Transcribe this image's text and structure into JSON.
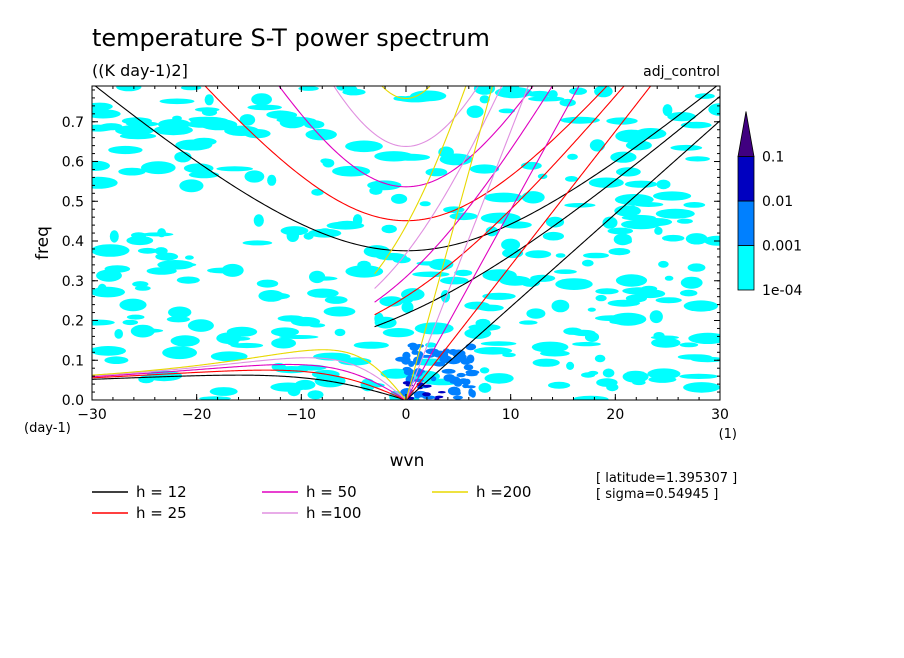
{
  "header": {
    "title": "temperature S-T power spectrum",
    "units": "((K day-1)2]",
    "run_label": "adj_control"
  },
  "chart_data": {
    "type": "heatmap",
    "xlabel": "wvn",
    "xunit": "(1)",
    "ylabel": "freq",
    "yunit": "(day-1)",
    "xlim": [
      -30,
      30
    ],
    "ylim": [
      0,
      0.79
    ],
    "x_ticks": [
      -30,
      -20,
      -10,
      0,
      10,
      20,
      30
    ],
    "x_tick_labels": [
      "-30",
      "-20",
      "-10",
      "0",
      "10",
      "20",
      "30"
    ],
    "y_ticks": [
      0,
      0.1,
      0.2,
      0.3,
      0.4,
      0.5,
      0.6,
      0.7
    ],
    "y_tick_labels": [
      "0.0",
      "0.1",
      "0.2",
      "0.3",
      "0.4",
      "0.5",
      "0.6",
      "0.7"
    ],
    "colorbar": {
      "levels": [
        0.0001,
        0.001,
        0.01,
        0.1
      ],
      "labels": [
        "1e-04",
        "0.001",
        "0.01",
        "0.1"
      ],
      "colors": [
        "#00ffff",
        "#0080ff",
        "#0000c0",
        "#400080"
      ]
    },
    "dispersion_curves": [
      {
        "name": "h = 12",
        "h": 12,
        "color": "#000000"
      },
      {
        "name": "h = 25",
        "h": 25,
        "color": "#ff0000"
      },
      {
        "name": "h = 50",
        "h": 50,
        "color": "#e000c0"
      },
      {
        "name": "h =100",
        "h": 100,
        "color": "#e090e0"
      },
      {
        "name": "h =200",
        "h": 200,
        "color": "#e8d800"
      }
    ]
  },
  "annotations": {
    "latitude": "[ latitude=1.395307 ]",
    "sigma": "[ sigma=0.54945 ]"
  }
}
